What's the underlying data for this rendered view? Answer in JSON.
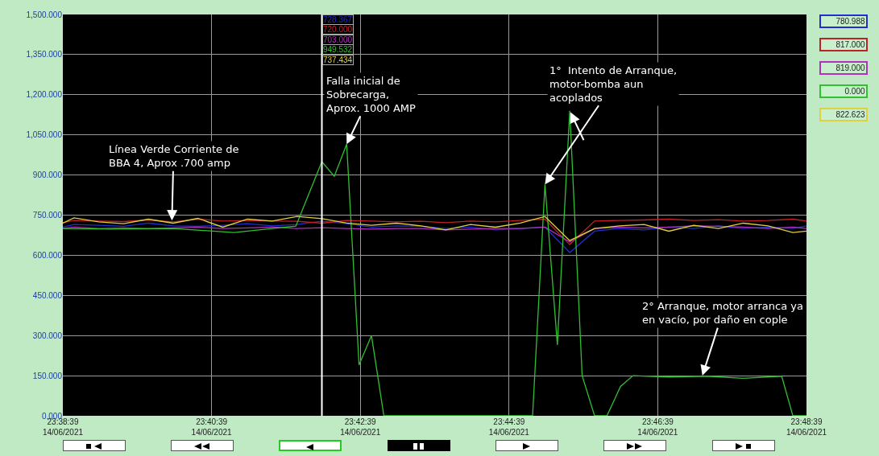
{
  "chart_data": {
    "type": "line",
    "x": [
      "2021-06-14T23:38:39",
      "2021-06-14T23:38:48",
      "2021-06-14T23:39:08",
      "2021-06-14T23:39:28",
      "2021-06-14T23:39:48",
      "2021-06-14T23:40:08",
      "2021-06-14T23:40:28",
      "2021-06-14T23:40:48",
      "2021-06-14T23:41:08",
      "2021-06-14T23:41:28",
      "2021-06-14T23:41:48",
      "2021-06-14T23:42:08",
      "2021-06-14T23:42:28",
      "2021-06-14T23:42:48",
      "2021-06-14T23:43:08",
      "2021-06-14T23:43:28",
      "2021-06-14T23:43:48",
      "2021-06-14T23:44:08",
      "2021-06-14T23:44:28",
      "2021-06-14T23:44:48",
      "2021-06-14T23:45:08",
      "2021-06-14T23:45:28",
      "2021-06-14T23:45:48",
      "2021-06-14T23:46:08",
      "2021-06-14T23:46:28",
      "2021-06-14T23:46:48",
      "2021-06-14T23:47:08",
      "2021-06-14T23:47:28",
      "2021-06-14T23:47:48",
      "2021-06-14T23:48:08",
      "2021-06-14T23:48:28",
      "2021-06-14T23:48:39"
    ],
    "series": [
      {
        "color": "#2030c8",
        "values": [
          705,
          715,
          712,
          708,
          720,
          710,
          708,
          712,
          718,
          710,
          715,
          728,
          718,
          705,
          710,
          708,
          700,
          705,
          695,
          700,
          705,
          610,
          690,
          700,
          695,
          705,
          700,
          710,
          700,
          705,
          700,
          710
        ]
      },
      {
        "color": "#c02028",
        "values": [
          722,
          730,
          728,
          726,
          732,
          725,
          735,
          728,
          730,
          728,
          727,
          720,
          730,
          728,
          725,
          727,
          722,
          728,
          725,
          730,
          735,
          640,
          728,
          730,
          732,
          735,
          730,
          733,
          728,
          730,
          735,
          728
        ]
      },
      {
        "color": "#b030c0",
        "values": [
          700,
          705,
          700,
          702,
          700,
          702,
          705,
          700,
          702,
          705,
          700,
          703,
          700,
          698,
          700,
          700,
          695,
          698,
          700,
          700,
          705,
          650,
          700,
          705,
          702,
          705,
          710,
          708,
          705,
          700,
          705,
          700
        ]
      },
      {
        "color": "#30c030",
        "x": [
          "2021-06-14T23:38:39",
          "2021-06-14T23:39:18",
          "2021-06-14T23:40:08",
          "2021-06-14T23:40:57",
          "2021-06-14T23:41:28",
          "2021-06-14T23:41:47",
          "2021-06-14T23:42:08",
          "2021-06-14T23:42:18",
          "2021-06-14T23:42:28",
          "2021-06-14T23:42:38",
          "2021-06-14T23:42:48",
          "2021-06-14T23:42:58",
          "2021-06-14T23:44:58",
          "2021-06-14T23:45:08",
          "2021-06-14T23:45:18",
          "2021-06-14T23:45:28",
          "2021-06-14T23:45:38",
          "2021-06-14T23:45:48",
          "2021-06-14T23:45:58",
          "2021-06-14T23:46:09",
          "2021-06-14T23:46:19",
          "2021-06-14T23:46:48",
          "2021-06-14T23:47:18",
          "2021-06-14T23:47:48",
          "2021-06-14T23:48:19",
          "2021-06-14T23:48:28",
          "2021-06-14T23:48:39"
        ],
        "values": [
          700,
          698,
          700,
          685,
          700,
          709,
          950,
          895,
          1015,
          190,
          300,
          0,
          0,
          865,
          265,
          1140,
          150,
          0,
          0,
          110,
          150,
          145,
          148,
          140,
          148,
          0,
          0
        ]
      },
      {
        "color": "#e0d040",
        "values": [
          720,
          740,
          725,
          718,
          735,
          720,
          738,
          705,
          735,
          728,
          745,
          737,
          720,
          712,
          720,
          710,
          695,
          715,
          705,
          720,
          745,
          655,
          700,
          710,
          715,
          690,
          712,
          700,
          720,
          710,
          685,
          690
        ]
      }
    ],
    "xlim": [
      "2021-06-14T23:38:39",
      "2021-06-14T23:48:39"
    ],
    "xticks": [
      {
        "value": "2021-06-14T23:38:39",
        "label": "23:38:39\n14/06/2021"
      },
      {
        "value": "2021-06-14T23:40:39",
        "label": "23:40:39\n14/06/2021"
      },
      {
        "value": "2021-06-14T23:42:39",
        "label": "23:42:39\n14/06/2021"
      },
      {
        "value": "2021-06-14T23:44:39",
        "label": "23:44:39\n14/06/2021"
      },
      {
        "value": "2021-06-14T23:46:39",
        "label": "23:46:39\n14/06/2021"
      },
      {
        "value": "2021-06-14T23:48:39",
        "label": "23:48:39\n14/06/2021"
      }
    ],
    "ylim": [
      0,
      1500
    ],
    "yticks": [
      {
        "value": 0,
        "label": "0.000"
      },
      {
        "value": 150,
        "label": "150.000"
      },
      {
        "value": 300,
        "label": "300.000"
      },
      {
        "value": 450,
        "label": "450.000"
      },
      {
        "value": 600,
        "label": "600.000"
      },
      {
        "value": 750,
        "label": "750.000"
      },
      {
        "value": 900,
        "label": "900.000"
      },
      {
        "value": 1050,
        "label": "1,050.000"
      },
      {
        "value": 1200,
        "label": "1,200.000"
      },
      {
        "value": 1350,
        "label": "1,350.000"
      },
      {
        "value": 1500,
        "label": "1,500.000"
      }
    ],
    "grid": true,
    "marker": "none",
    "ref_lines": [
      {
        "axis": "x",
        "value": "2021-06-14T23:42:08",
        "color": "#ffffff"
      }
    ],
    "annotations": [
      {
        "text": "Línea Verde Corriente de\nBBA 4, Aprox .700 amp",
        "x": "2021-06-14T23:40:07",
        "y": 730
      },
      {
        "text": "Falla inicial de\nSobrecarga,\nAprox. 1000 AMP",
        "x": "2021-06-14T23:42:28",
        "y": 1015
      },
      {
        "text": "1°  Intento de Arranque,\nmotor-bomba aun\nacoplados",
        "x": "2021-06-14T23:45:08",
        "y": 865
      },
      {
        "text": "2° Arranque, motor arranca ya\nen vacío, por daño en cople",
        "x": "2021-06-14T23:47:15",
        "y": 150
      },
      "728.367",
      "720.000",
      "703.000",
      "949.532",
      "737.434",
      "780.988",
      "817.000",
      "819.000",
      "0.000",
      "822.623"
    ]
  }
}
